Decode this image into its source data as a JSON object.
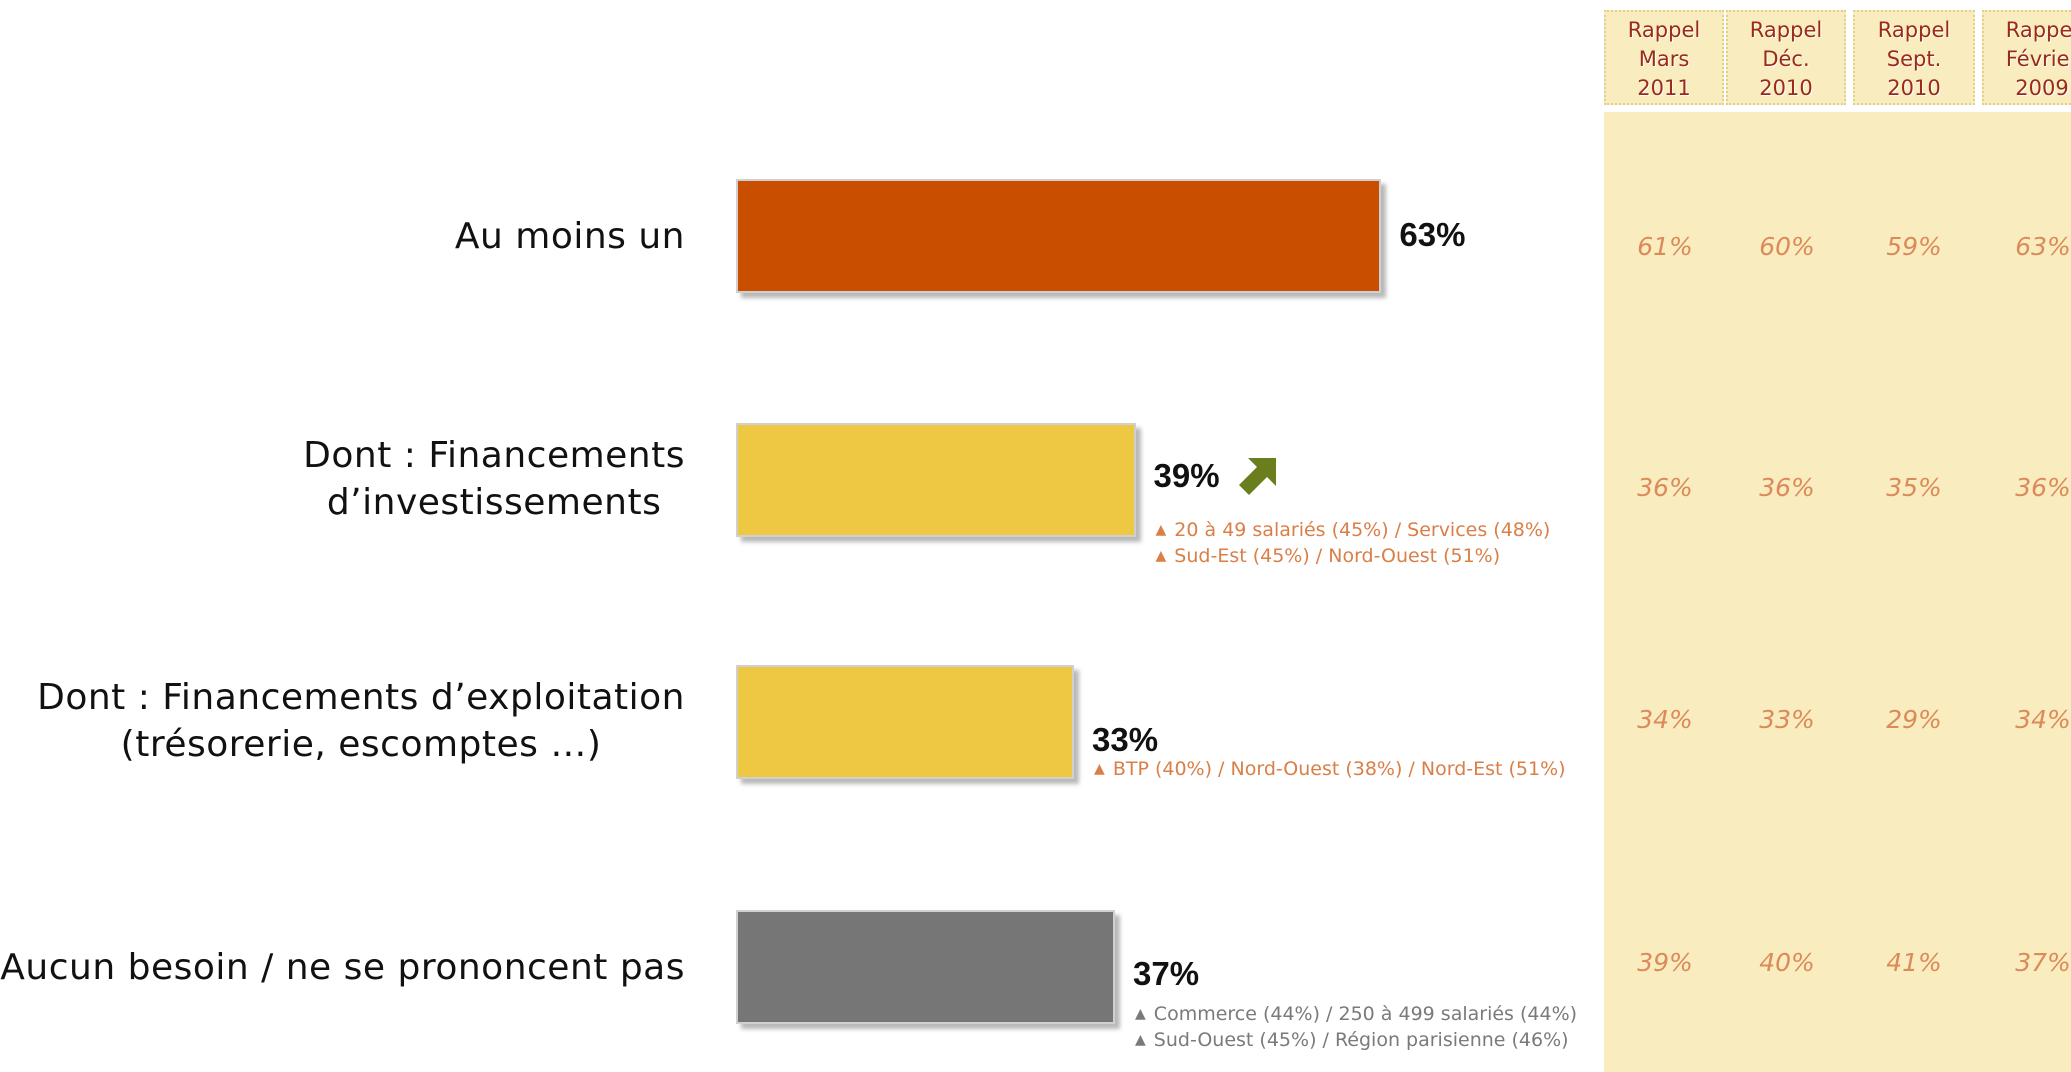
{
  "colors": {
    "bar_total": "#c94e00",
    "bar_sub": "#eec843",
    "bar_none": "#767676",
    "note_orange": "#d97f47",
    "note_gray": "#7a7a7a",
    "trend_up": "#6b7e1e",
    "recall_panel": "#f9ecbf",
    "recall_header_text": "#9a2b16",
    "recall_value_text": "#dc8a5a"
  },
  "chart_data": {
    "type": "bar",
    "orientation": "horizontal",
    "categories": [
      [
        "Au moins un"
      ],
      [
        "Dont : Financements",
        "d’investissements"
      ],
      [
        "Dont : Financements d’exploitation",
        "(trésorerie, escomptes …)"
      ],
      [
        "Aucun besoin / ne se prononcent pas"
      ]
    ],
    "values": [
      63,
      39,
      33,
      37
    ],
    "value_labels": [
      "63%",
      "39%",
      "33%",
      "37%"
    ],
    "unit": "%",
    "xlim": [
      0,
      100
    ],
    "grid": false,
    "trend": [
      null,
      "up",
      null,
      null
    ],
    "trend_icon": "up-arrow-icon",
    "subgroup_notes": [
      [],
      [
        "20 à 49 salariés (45%) / Services (48%)",
        "Sud-Est (45%) / Nord-Ouest (51%)"
      ],
      [
        "BTP (40%) / Nord-Ouest (38%) / Nord-Est (51%)"
      ],
      [
        "Commerce (44%) / 250 à 499 salariés (44%)",
        "Sud-Ouest (45%) / Région parisienne (46%)"
      ]
    ],
    "recall_columns": [
      {
        "header": [
          "Rappel",
          "Mars",
          "2011"
        ],
        "values": [
          "61%",
          "36%",
          "34%",
          "39%"
        ]
      },
      {
        "header": [
          "Rappel",
          "Déc.",
          "2010"
        ],
        "values": [
          "60%",
          "36%",
          "33%",
          "40%"
        ]
      },
      {
        "header": [
          "Rappel",
          "Sept.",
          "2010"
        ],
        "values": [
          "59%",
          "35%",
          "29%",
          "41%"
        ]
      },
      {
        "header": [
          "Rappel",
          "Février",
          "2009"
        ],
        "values": [
          "63%",
          "36%",
          "34%",
          "37%"
        ]
      }
    ]
  }
}
